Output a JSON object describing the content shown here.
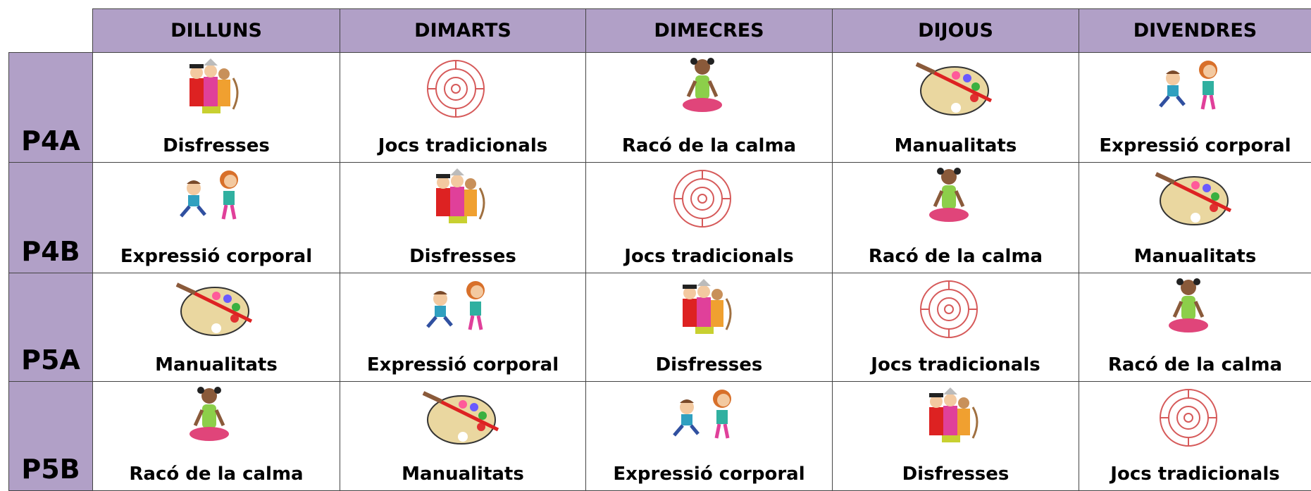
{
  "header": {
    "columns": [
      "DILLUNS",
      "DIMARTS",
      "DIMECRES",
      "DIJOUS",
      "DIVENDRES"
    ]
  },
  "table": {
    "rows": [
      {
        "group": "P4A",
        "cells": [
          "Disfresses",
          "Jocs tradicionals",
          "Racó de la calma",
          "Manualitats",
          "Expressió corporal"
        ]
      },
      {
        "group": "P4B",
        "cells": [
          "Expressió corporal",
          "Disfresses",
          "Jocs tradicionals",
          "Racó de la calma",
          "Manualitats"
        ]
      },
      {
        "group": "P5A",
        "cells": [
          "Manualitats",
          "Expressió corporal",
          "Disfresses",
          "Jocs tradicionals",
          "Racó de la calma"
        ]
      },
      {
        "group": "P5B",
        "cells": [
          "Racó de la calma",
          "Manualitats",
          "Expressió corporal",
          "Disfresses",
          "Jocs tradicionals"
        ]
      }
    ]
  }
}
